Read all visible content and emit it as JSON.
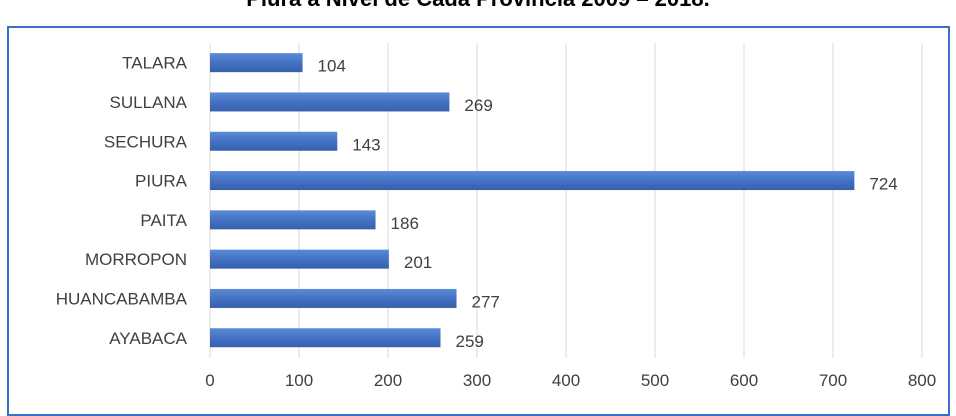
{
  "chart_data": {
    "type": "bar",
    "orientation": "horizontal",
    "title": "Piura a Nivel de Cada Provincia 2009 – 2018.",
    "categories": [
      "TALARA",
      "SULLANA",
      "SECHURA",
      "PIURA",
      "PAITA",
      "MORROPON",
      "HUANCABAMBA",
      "AYABACA"
    ],
    "values": [
      104,
      269,
      143,
      724,
      186,
      201,
      277,
      259
    ],
    "xlim": [
      0,
      800
    ],
    "xticks": [
      0,
      100,
      200,
      300,
      400,
      500,
      600,
      700,
      800
    ],
    "grid": "vertical",
    "bar_color": "#4472c4",
    "frame_color": "#3a6fc4"
  }
}
